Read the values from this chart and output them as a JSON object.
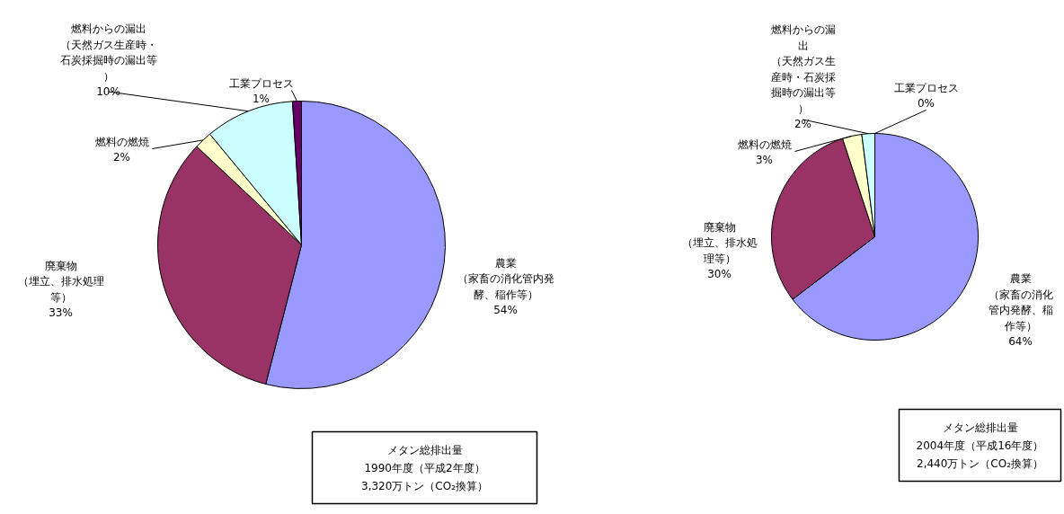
{
  "chart_data": [
    {
      "type": "pie",
      "categories": [
        "農業（家畜の消化管内発酵、稲作等）",
        "廃棄物（埋立、排水処理等）",
        "燃料の燃焼",
        "燃料からの漏出（天然ガス生産時・石炭採掘時の漏出等）",
        "工業プロセス"
      ],
      "values": [
        54,
        33,
        2,
        10,
        1
      ],
      "value_labels": [
        "54%",
        "33%",
        "2%",
        "10%",
        "1%"
      ],
      "colors": [
        "#9999ff",
        "#993366",
        "#ffffcc",
        "#ccffff",
        "#660066"
      ],
      "annotations": [
        "メタン総排出量",
        "1990年度（平成2年度）",
        "3,320万トン（CO₂換算）"
      ],
      "legend": false
    },
    {
      "type": "pie",
      "categories": [
        "農業（家畜の消化管内発酵、稲作等）",
        "廃棄物（埋立、排水処理等）",
        "燃料の燃焼",
        "燃料からの漏出（天然ガス生産時・石炭採掘時の漏出等）",
        "工業プロセス"
      ],
      "values": [
        64,
        30,
        3,
        2,
        0
      ],
      "value_labels": [
        "64%",
        "30%",
        "3%",
        "2%",
        "0%"
      ],
      "colors": [
        "#9999ff",
        "#993366",
        "#ffffcc",
        "#ccffff",
        "#660066"
      ],
      "annotations": [
        "メタン総排出量",
        "2004年度（平成16年度）",
        "2,440万トン（CO₂換算）"
      ],
      "legend": false
    }
  ]
}
